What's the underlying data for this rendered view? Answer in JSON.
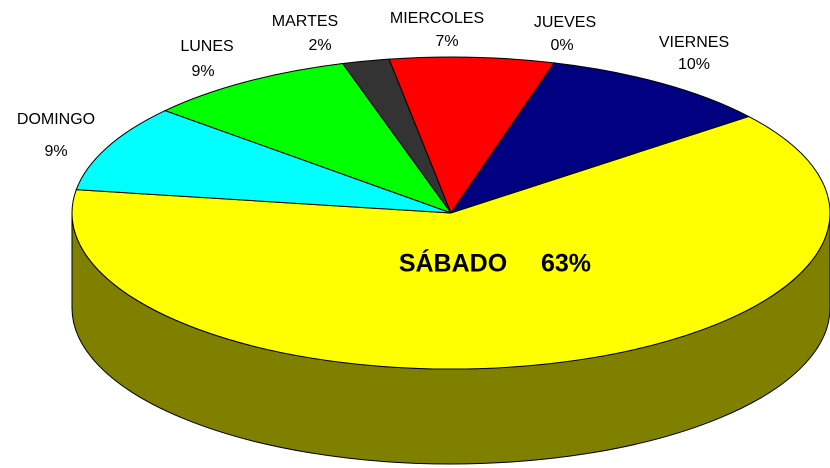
{
  "chart_data": {
    "type": "pie3d",
    "categories": [
      "LUNES",
      "MARTES",
      "MIERCOLES",
      "JUEVES",
      "VIERNES",
      "SÁBADO",
      "DOMINGO"
    ],
    "values": [
      9,
      2,
      7,
      0,
      10,
      63,
      9
    ],
    "value_labels": [
      "9%",
      "2%",
      "7%",
      "0%",
      "10%",
      "63%",
      "9%"
    ],
    "colors": [
      "#00ff00",
      "#333333",
      "#ff0000",
      "#ffff00",
      "#000080",
      "#ffff00",
      "#00ffff"
    ]
  }
}
